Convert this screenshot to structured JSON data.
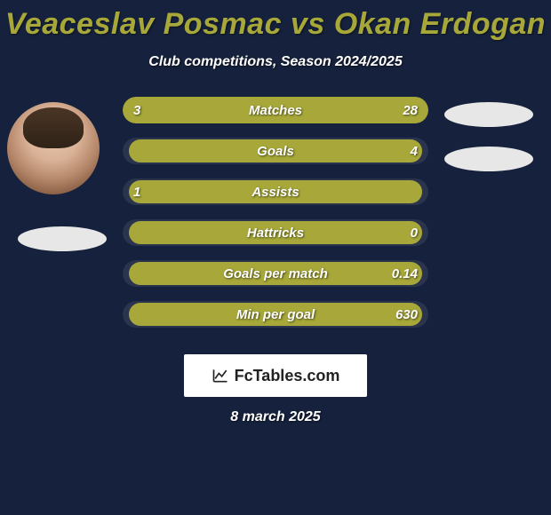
{
  "title": "Veaceslav Posmac vs Okan Erdogan",
  "subtitle": "Club competitions, Season 2024/2025",
  "brand": "FcTables.com",
  "date": "8 march 2025",
  "colors": {
    "background": "#16223d",
    "title": "#a7a839",
    "text": "#ffffff",
    "bar_bg_full": "#a7a839",
    "bar_bg_empty": "#2a344c",
    "bar_fill": "#a7a839",
    "badge": "#e7e7e7",
    "brand_bg": "#ffffff"
  },
  "bars": [
    {
      "label": "Matches",
      "left_value": "3",
      "right_value": "28",
      "bg_full": true,
      "fill_left_pct": 0,
      "fill_width_pct": 100
    },
    {
      "label": "Goals",
      "left_value": "",
      "right_value": "4",
      "bg_full": false,
      "fill_left_pct": 2,
      "fill_width_pct": 96
    },
    {
      "label": "Assists",
      "left_value": "1",
      "right_value": "",
      "bg_full": false,
      "fill_left_pct": 2,
      "fill_width_pct": 96
    },
    {
      "label": "Hattricks",
      "left_value": "",
      "right_value": "0",
      "bg_full": false,
      "fill_left_pct": 2,
      "fill_width_pct": 96
    },
    {
      "label": "Goals per match",
      "left_value": "",
      "right_value": "0.14",
      "bg_full": false,
      "fill_left_pct": 2,
      "fill_width_pct": 96
    },
    {
      "label": "Min per goal",
      "left_value": "",
      "right_value": "630",
      "bg_full": false,
      "fill_left_pct": 2,
      "fill_width_pct": 96
    }
  ]
}
